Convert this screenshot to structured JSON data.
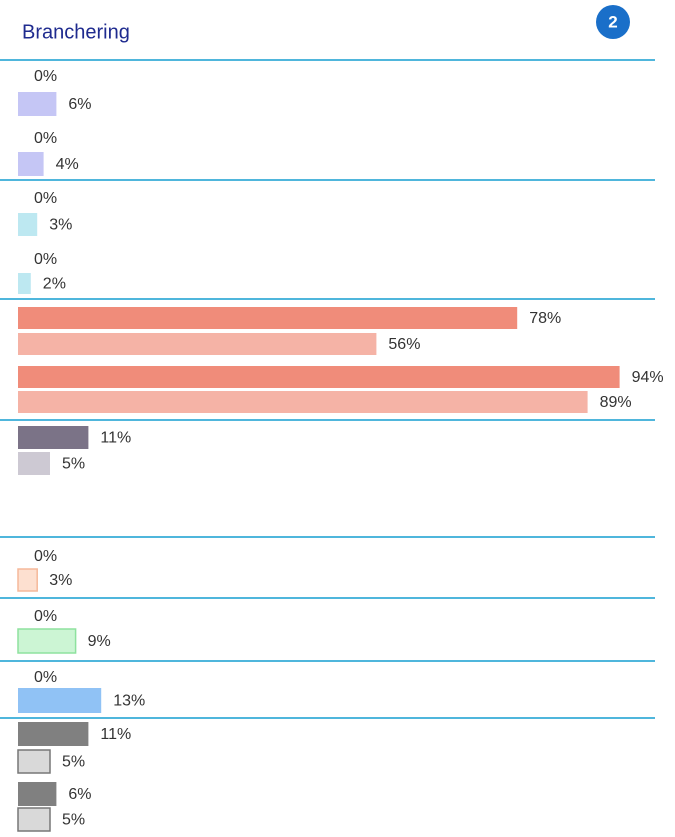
{
  "header": {
    "title": "Branchering",
    "badge": "2"
  },
  "chart_data": {
    "type": "bar",
    "values": [
      0,
      6,
      0,
      4,
      0,
      3,
      0,
      2,
      78,
      56,
      94,
      89,
      11,
      5,
      0,
      3,
      0,
      9,
      0,
      13,
      11,
      5,
      6,
      5
    ],
    "value_labels": [
      "0%",
      "6%",
      "0%",
      "4%",
      "0%",
      "3%",
      "0%",
      "2%",
      "78%",
      "56%",
      "94%",
      "89%",
      "11%",
      "5%",
      "0%",
      "3%",
      "0%",
      "9%",
      "0%",
      "13%",
      "11%",
      "5%",
      "6%",
      "5%"
    ],
    "colors": [
      "#c5c6f5",
      "#c5c6f5",
      "#c5c6f5",
      "#c5c6f5",
      "#bde8f1",
      "#bde8f1",
      "#bde8f1",
      "#bde8f1",
      "#f08c7a",
      "#f5b3a6",
      "#f08c7a",
      "#f5b3a6",
      "#7b7387",
      "#cdc9d3",
      "#fde0d0",
      "#fde0d0",
      "#ccf5d4",
      "#ccf5d4",
      "#90c2f5",
      "#90c2f5",
      "#808080",
      "#d9d9d9",
      "#808080",
      "#d9d9d9"
    ],
    "strokes": [
      null,
      null,
      null,
      null,
      null,
      null,
      null,
      null,
      null,
      null,
      null,
      null,
      null,
      null,
      "#f5b89a",
      "#f5b89a",
      "#8ee29e",
      "#8ee29e",
      null,
      null,
      null,
      "#777777",
      null,
      "#777777"
    ]
  }
}
